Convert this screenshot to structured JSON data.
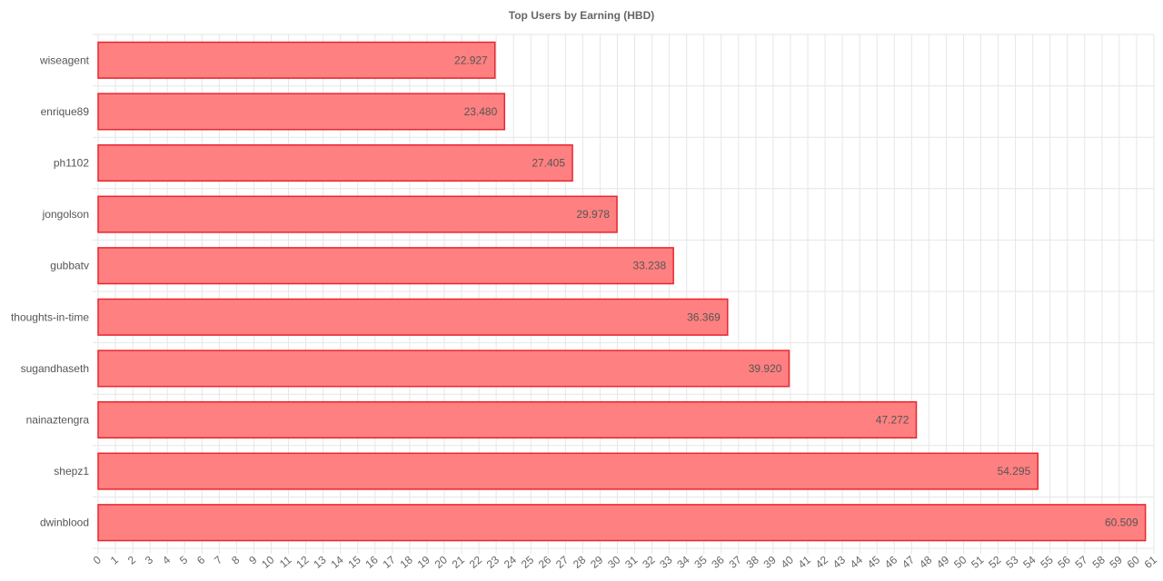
{
  "chart_data": {
    "type": "bar",
    "orientation": "horizontal",
    "title": "Top Users by Earning (HBD)",
    "xlabel": "",
    "ylabel": "",
    "categories": [
      "wiseagent",
      "enrique89",
      "ph1102",
      "jongolson",
      "gubbatv",
      "thoughts-in-time",
      "sugandhaseth",
      "nainaztengra",
      "shepz1",
      "dwinblood"
    ],
    "values": [
      22.927,
      23.48,
      27.405,
      29.978,
      33.238,
      36.369,
      39.92,
      47.272,
      54.295,
      60.509
    ],
    "value_labels": [
      "22.927",
      "23.480",
      "27.405",
      "29.978",
      "33.238",
      "36.369",
      "39.920",
      "47.272",
      "54.295",
      "60.509"
    ],
    "xlim": [
      0,
      61
    ],
    "x_tick_step": 1,
    "grid": true,
    "legend": "none",
    "colors": {
      "bar_fill": "#ff8080",
      "bar_stroke": "#e8262f",
      "grid": "#e6e6e6"
    }
  }
}
